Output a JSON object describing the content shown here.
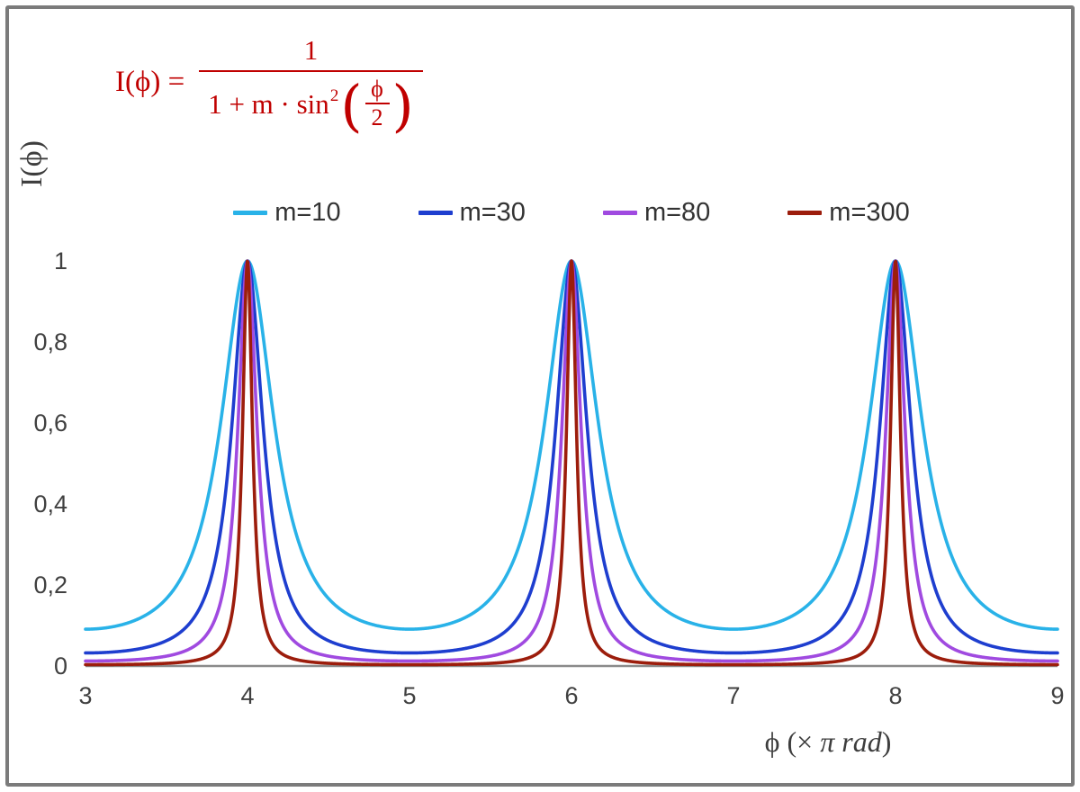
{
  "chart_data": {
    "type": "line",
    "title": "",
    "formula": {
      "lhs": "I(ϕ) =",
      "numerator": "1",
      "den_prefix": "1 + m · sin",
      "den_sup": "2",
      "paren_open": "(",
      "inner_numerator": "ϕ",
      "inner_denominator": "2",
      "paren_close": ")",
      "color": "#c00000",
      "as_text": "I(ϕ) = 1 / (1 + m·sin²(ϕ/2))"
    },
    "xlabel_prefix": "ϕ  (× ",
    "xlabel_italic": "π rad",
    "xlabel_suffix": ")",
    "ylabel": "I(ϕ)",
    "x_range": [
      3,
      9
    ],
    "y_range": [
      0,
      1
    ],
    "x_ticks": [
      3,
      4,
      5,
      6,
      7,
      8,
      9
    ],
    "x_tick_labels": [
      "3",
      "4",
      "5",
      "6",
      "7",
      "8",
      "9"
    ],
    "y_ticks": [
      0,
      0.2,
      0.4,
      0.6,
      0.8,
      1
    ],
    "y_tick_labels": [
      "0",
      "0,2",
      "0,4",
      "0,6",
      "0,8",
      "1"
    ],
    "function": "y = 1 / (1 + m · sin^2(x·π/2)), x in units of π rad",
    "series": [
      {
        "name": "m=10",
        "m": 10,
        "color": "#29b2e8"
      },
      {
        "name": "m=30",
        "m": 30,
        "color": "#1e3ecf"
      },
      {
        "name": "m=80",
        "m": 80,
        "color": "#a04ae0"
      },
      {
        "name": "m=300",
        "m": 300,
        "color": "#9c1d0c"
      }
    ],
    "peaks_x": [
      4,
      6,
      8
    ],
    "peak_value": 1,
    "grid": false,
    "legend_position": "top-center",
    "axis_color": "#8a8a8a",
    "tick_text_color": "#404040",
    "frame_color": "#7b7b7b"
  }
}
